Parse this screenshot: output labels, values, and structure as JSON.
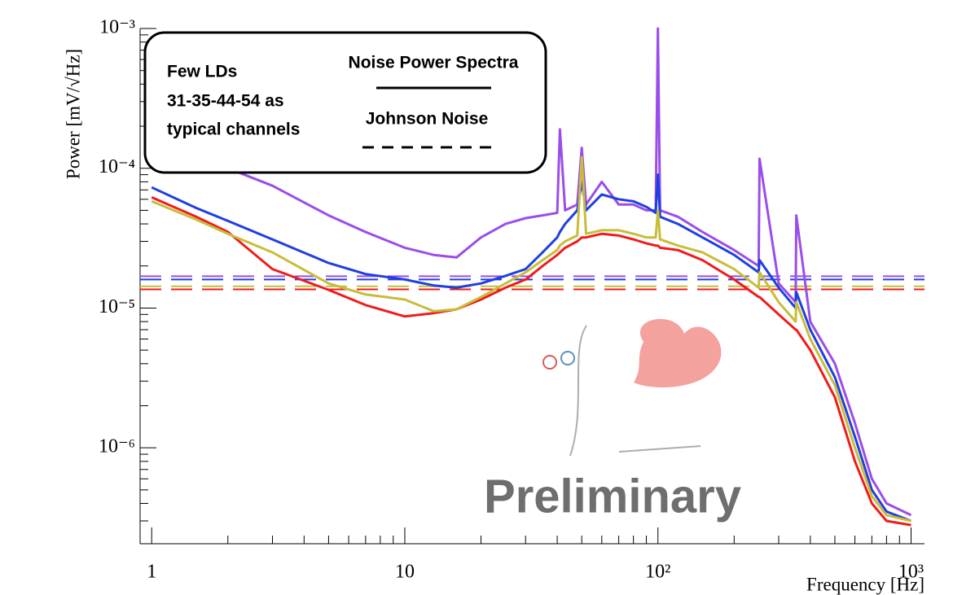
{
  "chart_data": {
    "type": "line",
    "xlabel": "Frequency [Hz]",
    "ylabel": "Power [mV/√Hz]",
    "xscale": "log",
    "yscale": "log",
    "xlim": [
      0.9,
      1130
    ],
    "ylim": [
      2.06e-07,
      0.001
    ],
    "xticks": [
      1,
      10,
      {
        "value": 100,
        "label": "10²"
      },
      {
        "value": 1000,
        "label": "10³"
      }
    ],
    "yticks": [
      {
        "value": 1e-06,
        "label": "10⁻⁶"
      },
      {
        "value": 1e-05,
        "label": "10⁻⁵"
      },
      {
        "value": 0.0001,
        "label": "10⁻⁴"
      },
      {
        "value": 0.001,
        "label": "10⁻³"
      }
    ],
    "x": [
      1,
      1.5,
      2,
      3,
      5,
      7,
      10,
      13,
      16,
      20,
      25,
      30,
      35,
      40,
      41,
      43,
      48,
      50,
      52,
      60,
      70,
      80,
      90,
      98,
      100,
      102,
      120,
      150,
      200,
      250,
      252,
      300,
      350,
      352,
      400,
      500,
      600,
      700,
      800,
      1000
    ],
    "series": [
      {
        "color": "#9b4dea",
        "values": [
          0.00015,
          0.000125,
          0.0001,
          7.5e-05,
          4.6e-05,
          3.5e-05,
          2.7e-05,
          2.4e-05,
          2.3e-05,
          3.2e-05,
          4e-05,
          4.4e-05,
          4.6e-05,
          4.8e-05,
          0.00019,
          5e-05,
          5.5e-05,
          0.00014,
          5.5e-05,
          8e-05,
          5.5e-05,
          5.5e-05,
          5e-05,
          5e-05,
          0.001,
          5e-05,
          4.5e-05,
          3.5e-05,
          2.6e-05,
          2e-05,
          0.000117,
          1.5e-05,
          1.1e-05,
          4.6e-05,
          8e-06,
          4e-06,
          1.5e-06,
          6e-07,
          4e-07,
          3.3e-07
        ]
      },
      {
        "color": "#1f3fe0",
        "values": [
          7.3e-05,
          5.2e-05,
          4.2e-05,
          3.1e-05,
          2.1e-05,
          1.75e-05,
          1.6e-05,
          1.45e-05,
          1.4e-05,
          1.5e-05,
          1.7e-05,
          1.9e-05,
          2.5e-05,
          3.2e-05,
          3.5e-05,
          4e-05,
          5e-05,
          8e-05,
          5e-05,
          6.5e-05,
          6e-05,
          5.8e-05,
          5.3e-05,
          4.8e-05,
          9e-05,
          4.5e-05,
          4e-05,
          3.2e-05,
          2.4e-05,
          1.8e-05,
          2.2e-05,
          1.4e-05,
          1e-05,
          1.3e-05,
          7e-06,
          3.2e-06,
          1.2e-06,
          5e-07,
          3.5e-07,
          3e-07
        ]
      },
      {
        "color": "#ee1c1c",
        "values": [
          6.2e-05,
          4.5e-05,
          3.5e-05,
          1.9e-05,
          1.35e-05,
          1.05e-05,
          8.7e-06,
          9.2e-06,
          9.8e-06,
          1.15e-05,
          1.4e-05,
          1.6e-05,
          2e-05,
          2.4e-05,
          2.5e-05,
          2.7e-05,
          3e-05,
          3.2e-05,
          3.2e-05,
          3.4e-05,
          3.3e-05,
          3.1e-05,
          2.9e-05,
          2.8e-05,
          2.8e-05,
          2.7e-05,
          2.6e-05,
          2.2e-05,
          1.6e-05,
          1.2e-05,
          1.2e-05,
          9e-06,
          7e-06,
          7e-06,
          5e-06,
          2.3e-06,
          8e-07,
          4e-07,
          3e-07,
          2.8e-07
        ]
      },
      {
        "color": "#c8bd3a",
        "values": [
          5.8e-05,
          4.3e-05,
          3.4e-05,
          2.5e-05,
          1.5e-05,
          1.25e-05,
          1.15e-05,
          9.5e-06,
          9.8e-06,
          1.2e-05,
          1.5e-05,
          1.8e-05,
          2.2e-05,
          2.6e-05,
          2.8e-05,
          3e-05,
          3.3e-05,
          0.00012,
          3.4e-05,
          3.6e-05,
          3.6e-05,
          3.4e-05,
          3.2e-05,
          3.2e-05,
          5e-05,
          3.1e-05,
          2.8e-05,
          2.5e-05,
          1.9e-05,
          1.4e-05,
          1.8e-05,
          1.1e-05,
          8e-06,
          1.1e-05,
          6e-06,
          2.8e-06,
          1e-06,
          4.5e-07,
          3.3e-07,
          3e-07
        ]
      }
    ],
    "johnson_noise": [
      {
        "color": "#9b4dea",
        "value": 1.69e-05
      },
      {
        "color": "#1f3fe0",
        "value": 1.6e-05
      },
      {
        "color": "#c8bd3a",
        "value": 1.43e-05
      },
      {
        "color": "#ee1c1c",
        "value": 1.36e-05
      }
    ],
    "legend": {
      "note_lines": [
        "Few LDs",
        "31-35-44-54 as",
        "typical channels"
      ],
      "solid_label": "Noise Power Spectra",
      "dashed_label": "Johnson Noise"
    },
    "watermark": "Preliminary"
  }
}
